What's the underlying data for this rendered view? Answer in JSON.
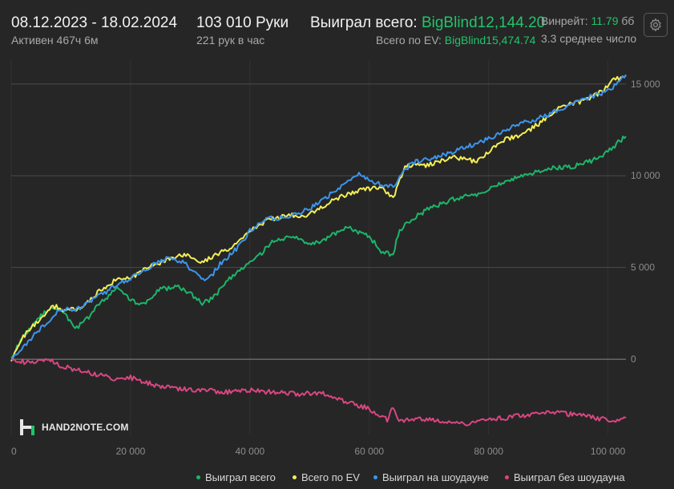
{
  "header": {
    "date_range": "08.12.2023 - 18.02.2024",
    "active_time": "Активен 467ч 6м",
    "hands": "103 010 Руки",
    "hands_per_hour": "221 рук в час",
    "won_total_label": "Выиграл всего:",
    "won_total_value": "BigBlind12,144.20",
    "ev_total_label": "Всего по EV:",
    "ev_total_value": "BigBlind15,474.74",
    "winrate_label": "Винрейт:",
    "winrate_value": "11.79",
    "winrate_unit": "бб",
    "avg_text": "3.3 среднее число"
  },
  "settings": {
    "icon": "gear-icon"
  },
  "logo": {
    "text": "HAND2NOTE.COM",
    "icon": "h2n-logo-icon"
  },
  "chart_data": {
    "type": "line",
    "xlim": [
      0,
      103010
    ],
    "ylim": [
      -4100,
      16300
    ],
    "x_ticks": [
      0,
      20000,
      40000,
      60000,
      80000,
      100000
    ],
    "x_tick_labels": [
      "0",
      "20 000",
      "40 000",
      "60 000",
      "80 000",
      "100 000"
    ],
    "y_ticks": [
      0,
      5000,
      10000,
      15000
    ],
    "y_tick_labels": [
      "0",
      "5 000",
      "10 000",
      "15 000"
    ],
    "grid": true,
    "legend": "bottom",
    "series": [
      {
        "name": "Выиграл всего",
        "color": "#1db56a",
        "points": [
          [
            0,
            0
          ],
          [
            1000,
            700
          ],
          [
            3000,
            1600
          ],
          [
            5000,
            2400
          ],
          [
            7000,
            2900
          ],
          [
            9000,
            2400
          ],
          [
            11000,
            1700
          ],
          [
            13000,
            2300
          ],
          [
            15000,
            3100
          ],
          [
            18000,
            3900
          ],
          [
            20000,
            3200
          ],
          [
            22000,
            3000
          ],
          [
            25000,
            3800
          ],
          [
            28000,
            4000
          ],
          [
            30000,
            3600
          ],
          [
            32000,
            3000
          ],
          [
            34000,
            3400
          ],
          [
            36000,
            4200
          ],
          [
            38000,
            4800
          ],
          [
            40000,
            5200
          ],
          [
            42000,
            5800
          ],
          [
            44000,
            6500
          ],
          [
            47000,
            6700
          ],
          [
            50000,
            6200
          ],
          [
            53000,
            6600
          ],
          [
            56000,
            7200
          ],
          [
            60000,
            6700
          ],
          [
            62000,
            5900
          ],
          [
            64000,
            5700
          ],
          [
            64800,
            6800
          ],
          [
            66000,
            7400
          ],
          [
            70000,
            8200
          ],
          [
            74000,
            8700
          ],
          [
            78000,
            9000
          ],
          [
            82000,
            9600
          ],
          [
            86000,
            10000
          ],
          [
            90000,
            10400
          ],
          [
            94000,
            10500
          ],
          [
            98000,
            10900
          ],
          [
            100000,
            11300
          ],
          [
            102000,
            11900
          ],
          [
            103010,
            12144
          ]
        ]
      },
      {
        "name": "Всего по EV",
        "color": "#f3ee56",
        "points": [
          [
            0,
            0
          ],
          [
            2000,
            1200
          ],
          [
            5000,
            2300
          ],
          [
            7000,
            2900
          ],
          [
            9000,
            2700
          ],
          [
            12000,
            2800
          ],
          [
            15000,
            3800
          ],
          [
            18000,
            4400
          ],
          [
            20000,
            4400
          ],
          [
            23000,
            5000
          ],
          [
            26000,
            5400
          ],
          [
            29000,
            5700
          ],
          [
            32000,
            5300
          ],
          [
            35000,
            5800
          ],
          [
            38000,
            6300
          ],
          [
            40000,
            7000
          ],
          [
            43000,
            7600
          ],
          [
            46000,
            7800
          ],
          [
            50000,
            7900
          ],
          [
            54000,
            8700
          ],
          [
            58000,
            9200
          ],
          [
            62000,
            9400
          ],
          [
            64000,
            8800
          ],
          [
            66000,
            10500
          ],
          [
            70000,
            10600
          ],
          [
            74000,
            11000
          ],
          [
            78000,
            10800
          ],
          [
            82000,
            11900
          ],
          [
            86000,
            12300
          ],
          [
            90000,
            13200
          ],
          [
            92000,
            13800
          ],
          [
            95000,
            14000
          ],
          [
            98000,
            14400
          ],
          [
            101000,
            15200
          ],
          [
            103010,
            15474
          ]
        ]
      },
      {
        "name": "Выиграл на шоудауне",
        "color": "#3d95eb",
        "points": [
          [
            0,
            0
          ],
          [
            2000,
            700
          ],
          [
            5000,
            1700
          ],
          [
            8000,
            2700
          ],
          [
            11000,
            2700
          ],
          [
            14000,
            3300
          ],
          [
            17000,
            3900
          ],
          [
            20000,
            4400
          ],
          [
            23000,
            5000
          ],
          [
            26000,
            5500
          ],
          [
            29000,
            5300
          ],
          [
            31000,
            4600
          ],
          [
            33000,
            4300
          ],
          [
            35000,
            5200
          ],
          [
            38000,
            6100
          ],
          [
            40000,
            7000
          ],
          [
            43000,
            7700
          ],
          [
            46000,
            7700
          ],
          [
            50000,
            8200
          ],
          [
            54000,
            9100
          ],
          [
            58000,
            10100
          ],
          [
            61000,
            9600
          ],
          [
            64000,
            9400
          ],
          [
            67000,
            10700
          ],
          [
            71000,
            11000
          ],
          [
            75000,
            11400
          ],
          [
            80000,
            12000
          ],
          [
            85000,
            12800
          ],
          [
            90000,
            13300
          ],
          [
            93000,
            13800
          ],
          [
            96000,
            14200
          ],
          [
            100000,
            14600
          ],
          [
            103010,
            15500
          ]
        ]
      },
      {
        "name": "Выиграл без шоудауна",
        "color": "#d94680",
        "points": [
          [
            0,
            0
          ],
          [
            3000,
            -200
          ],
          [
            6000,
            0
          ],
          [
            8000,
            -300
          ],
          [
            10000,
            -500
          ],
          [
            14000,
            -800
          ],
          [
            18000,
            -1100
          ],
          [
            20000,
            -1000
          ],
          [
            24000,
            -1400
          ],
          [
            28000,
            -1600
          ],
          [
            33000,
            -1700
          ],
          [
            36000,
            -1800
          ],
          [
            40000,
            -1700
          ],
          [
            44000,
            -1800
          ],
          [
            48000,
            -1900
          ],
          [
            52000,
            -1800
          ],
          [
            56000,
            -2300
          ],
          [
            60000,
            -2700
          ],
          [
            63000,
            -3300
          ],
          [
            64000,
            -2600
          ],
          [
            65000,
            -3400
          ],
          [
            68000,
            -3200
          ],
          [
            72000,
            -3400
          ],
          [
            76000,
            -3500
          ],
          [
            80000,
            -3300
          ],
          [
            85000,
            -3100
          ],
          [
            90000,
            -2900
          ],
          [
            94000,
            -3000
          ],
          [
            98000,
            -3200
          ],
          [
            101000,
            -3300
          ],
          [
            103010,
            -3200
          ]
        ]
      }
    ]
  }
}
